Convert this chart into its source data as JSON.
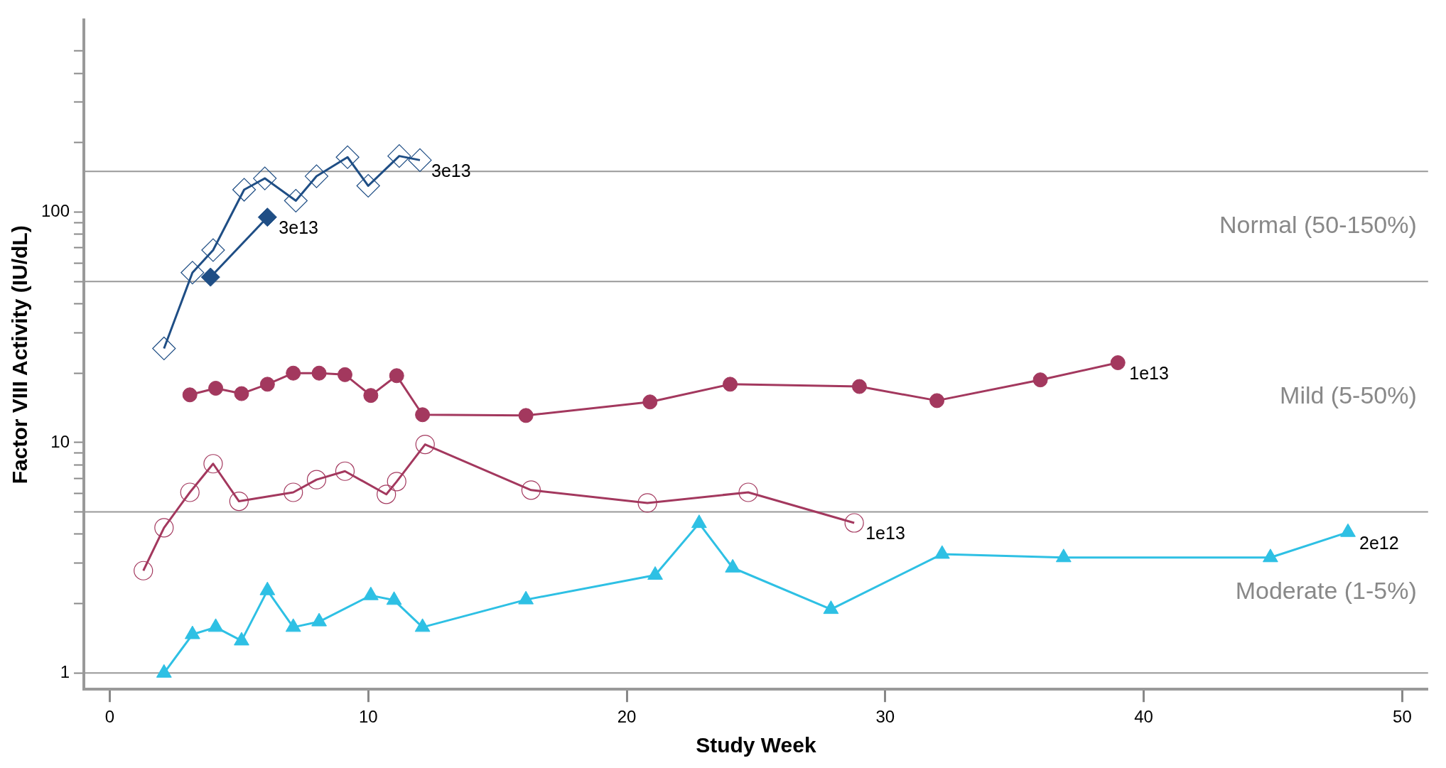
{
  "chart_data": {
    "type": "line",
    "xlabel": "Study Week",
    "ylabel": "Factor VIII Activity (IU/dL)",
    "log": "y",
    "grid": false,
    "legend": false,
    "xlim": [
      -1,
      51
    ],
    "xticks": [
      0,
      10,
      20,
      30,
      40,
      50
    ],
    "ylim": [
      0.85,
      680
    ],
    "yticks": [
      1,
      {
        "value": 2,
        "label": null
      },
      {
        "value": 3,
        "label": null
      },
      {
        "value": 4,
        "label": null
      },
      {
        "value": 5,
        "label": null
      },
      {
        "value": 6,
        "label": null
      },
      {
        "value": 7,
        "label": null
      },
      {
        "value": 8,
        "label": null
      },
      {
        "value": 9,
        "label": null
      },
      10,
      {
        "value": 20,
        "label": null
      },
      {
        "value": 30,
        "label": null
      },
      {
        "value": 40,
        "label": null
      },
      {
        "value": 50,
        "label": null
      },
      {
        "value": 60,
        "label": null
      },
      {
        "value": 70,
        "label": null
      },
      {
        "value": 80,
        "label": null
      },
      {
        "value": 90,
        "label": null
      },
      100,
      {
        "value": 200,
        "label": null
      },
      {
        "value": 300,
        "label": null
      },
      {
        "value": 400,
        "label": null
      },
      {
        "value": 500,
        "label": null
      }
    ],
    "ref_lines": [
      {
        "axis": "y",
        "value": 150,
        "color": "#999999"
      },
      {
        "axis": "y",
        "value": 50,
        "color": "#999999"
      },
      {
        "axis": "y",
        "value": 5,
        "color": "#999999"
      },
      {
        "axis": "y",
        "value": 1,
        "color": "#999999"
      }
    ],
    "annotations": [
      "Normal (50-150%)",
      "Mild (5-50%)",
      "Moderate (1-5%)"
    ],
    "series": [
      {
        "name": "3e13",
        "color": "#1f4e85",
        "marker": "diamond",
        "x": [
          2.1,
          3.2,
          4,
          5.2,
          6,
          7.2,
          8,
          9.2,
          10,
          11.2,
          12
        ],
        "values": [
          25.6,
          54.6,
          68.4,
          125,
          140,
          112,
          143,
          173,
          130,
          175,
          168
        ]
      },
      {
        "name": "3e13",
        "color": "#1f4e85",
        "marker": "diamond",
        "x": [
          3.9,
          6.1
        ],
        "values": [
          52.2,
          95
        ]
      },
      {
        "name": "1e13",
        "color": "#a3385e",
        "marker": "circle",
        "x": [
          3.1,
          4.1,
          5.1,
          6.1,
          7.1,
          8.1,
          9.1,
          10.1,
          11.1,
          12.1,
          16.1,
          20.9,
          24,
          29,
          32,
          36,
          39
        ],
        "values": [
          16.1,
          17.2,
          16.3,
          17.9,
          20,
          20,
          19.7,
          16,
          19.5,
          13.2,
          13.1,
          15,
          17.9,
          17.5,
          15.2,
          18.7,
          22.2
        ]
      },
      {
        "name": "1e13",
        "color": "#a3385e",
        "marker": "circle",
        "x": [
          1.3,
          2.1,
          3.1,
          4,
          5,
          7.1,
          8,
          9.1,
          10.7,
          11.1,
          12.2,
          16.3,
          20.8,
          24.7,
          28.8
        ],
        "values": [
          2.78,
          4.27,
          6.08,
          8.09,
          5.56,
          6.08,
          6.9,
          7.51,
          5.96,
          6.77,
          9.81,
          6.22,
          5.47,
          6.08,
          4.48
        ]
      },
      {
        "name": "2e12",
        "color": "#2ec0e4",
        "marker": "triangle",
        "x": [
          2.1,
          3.2,
          4.1,
          5.1,
          6.1,
          7.1,
          8.1,
          10.1,
          11,
          12.1,
          16.1,
          21.1,
          22.8,
          24.1,
          27.9,
          32.2,
          36.9,
          44.9,
          47.9
        ],
        "values": [
          1,
          1.47,
          1.58,
          1.38,
          2.28,
          1.58,
          1.67,
          2.17,
          2.07,
          1.58,
          2.08,
          2.66,
          4.46,
          2.86,
          1.89,
          3.28,
          3.17,
          3.17,
          4.08
        ]
      }
    ]
  }
}
